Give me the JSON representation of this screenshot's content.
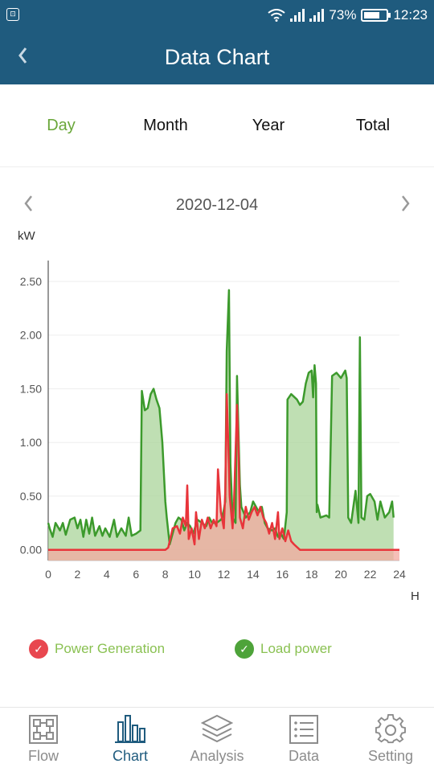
{
  "status_bar": {
    "battery": "73%",
    "time": "12:23",
    "battery_level": 0.73
  },
  "header": {
    "title": "Data Chart"
  },
  "tabs": [
    {
      "label": "Day",
      "active": true
    },
    {
      "label": "Month",
      "active": false
    },
    {
      "label": "Year",
      "active": false
    },
    {
      "label": "Total",
      "active": false
    }
  ],
  "date": "2020-12-04",
  "chart_data": {
    "type": "area",
    "ylabel": "kW",
    "xlabel": "H",
    "xlim": [
      0,
      24
    ],
    "ylim": [
      -0.1,
      2.65
    ],
    "x_ticks": [
      "0",
      "2",
      "4",
      "6",
      "8",
      "10",
      "12",
      "14",
      "16",
      "18",
      "20",
      "22",
      "24"
    ],
    "y_ticks": [
      "0.00",
      "0.50",
      "1.00",
      "1.50",
      "2.00",
      "2.50"
    ],
    "grid": true,
    "series": [
      {
        "name": "Load power",
        "color": "#3c9a2c",
        "fill": "#a9d49a",
        "points": [
          [
            0,
            0.25
          ],
          [
            0.1,
            0.2
          ],
          [
            0.3,
            0.12
          ],
          [
            0.5,
            0.25
          ],
          [
            0.8,
            0.18
          ],
          [
            1.0,
            0.25
          ],
          [
            1.2,
            0.14
          ],
          [
            1.5,
            0.28
          ],
          [
            1.8,
            0.3
          ],
          [
            2.0,
            0.2
          ],
          [
            2.2,
            0.28
          ],
          [
            2.4,
            0.12
          ],
          [
            2.6,
            0.28
          ],
          [
            2.8,
            0.15
          ],
          [
            3.0,
            0.3
          ],
          [
            3.2,
            0.13
          ],
          [
            3.5,
            0.22
          ],
          [
            3.7,
            0.13
          ],
          [
            3.9,
            0.2
          ],
          [
            4.2,
            0.12
          ],
          [
            4.5,
            0.28
          ],
          [
            4.7,
            0.12
          ],
          [
            5.0,
            0.2
          ],
          [
            5.3,
            0.13
          ],
          [
            5.5,
            0.3
          ],
          [
            5.7,
            0.13
          ],
          [
            6.0,
            0.15
          ],
          [
            6.3,
            0.18
          ],
          [
            6.4,
            1.48
          ],
          [
            6.6,
            1.3
          ],
          [
            6.8,
            1.32
          ],
          [
            7.0,
            1.45
          ],
          [
            7.2,
            1.5
          ],
          [
            7.4,
            1.4
          ],
          [
            7.6,
            1.32
          ],
          [
            7.8,
            1.0
          ],
          [
            8.0,
            0.45
          ],
          [
            8.1,
            0.3
          ],
          [
            8.3,
            0.05
          ],
          [
            8.5,
            0.15
          ],
          [
            8.7,
            0.25
          ],
          [
            8.9,
            0.3
          ],
          [
            9.1,
            0.28
          ],
          [
            9.3,
            0.18
          ],
          [
            9.5,
            0.25
          ],
          [
            9.7,
            0.22
          ],
          [
            9.9,
            0.15
          ],
          [
            10.2,
            0.28
          ],
          [
            10.5,
            0.25
          ],
          [
            10.8,
            0.22
          ],
          [
            11.0,
            0.3
          ],
          [
            11.2,
            0.25
          ],
          [
            11.5,
            0.25
          ],
          [
            11.8,
            0.28
          ],
          [
            11.9,
            0.3
          ],
          [
            12.1,
            0.45
          ],
          [
            12.2,
            1.85
          ],
          [
            12.35,
            2.42
          ],
          [
            12.45,
            0.8
          ],
          [
            12.6,
            0.3
          ],
          [
            12.8,
            0.25
          ],
          [
            12.9,
            1.62
          ],
          [
            13.0,
            1.1
          ],
          [
            13.1,
            0.6
          ],
          [
            13.2,
            0.4
          ],
          [
            13.5,
            0.3
          ],
          [
            13.8,
            0.35
          ],
          [
            14.0,
            0.45
          ],
          [
            14.2,
            0.4
          ],
          [
            14.4,
            0.35
          ],
          [
            14.6,
            0.4
          ],
          [
            14.8,
            0.25
          ],
          [
            15.0,
            0.2
          ],
          [
            15.3,
            0.18
          ],
          [
            15.5,
            0.2
          ],
          [
            15.7,
            0.12
          ],
          [
            15.9,
            0.15
          ],
          [
            16.1,
            0.1
          ],
          [
            16.3,
            0.35
          ],
          [
            16.35,
            1.4
          ],
          [
            16.6,
            1.45
          ],
          [
            17.0,
            1.4
          ],
          [
            17.2,
            1.35
          ],
          [
            17.4,
            1.38
          ],
          [
            17.6,
            1.55
          ],
          [
            17.8,
            1.65
          ],
          [
            18.0,
            1.67
          ],
          [
            18.1,
            1.42
          ],
          [
            18.2,
            1.72
          ],
          [
            18.3,
            1.55
          ],
          [
            18.35,
            0.35
          ],
          [
            18.4,
            0.42
          ],
          [
            18.6,
            0.3
          ],
          [
            19.0,
            0.32
          ],
          [
            19.2,
            0.3
          ],
          [
            19.4,
            1.62
          ],
          [
            19.7,
            1.65
          ],
          [
            20.0,
            1.6
          ],
          [
            20.3,
            1.67
          ],
          [
            20.4,
            1.6
          ],
          [
            20.5,
            0.3
          ],
          [
            20.7,
            0.25
          ],
          [
            21.0,
            0.55
          ],
          [
            21.2,
            0.25
          ],
          [
            21.3,
            1.98
          ],
          [
            21.4,
            0.3
          ],
          [
            21.6,
            0.28
          ],
          [
            21.8,
            0.5
          ],
          [
            22.0,
            0.52
          ],
          [
            22.3,
            0.45
          ],
          [
            22.5,
            0.28
          ],
          [
            22.7,
            0.45
          ],
          [
            23.0,
            0.3
          ],
          [
            23.3,
            0.35
          ],
          [
            23.5,
            0.45
          ],
          [
            23.6,
            0.3
          ]
        ]
      },
      {
        "name": "Power Generation",
        "color": "#e8343a",
        "fill": "#f3a9a0",
        "points": [
          [
            0,
            0.0
          ],
          [
            8.0,
            0.0
          ],
          [
            8.2,
            0.02
          ],
          [
            8.5,
            0.2
          ],
          [
            8.8,
            0.22
          ],
          [
            9.0,
            0.15
          ],
          [
            9.2,
            0.3
          ],
          [
            9.4,
            0.22
          ],
          [
            9.5,
            0.6
          ],
          [
            9.6,
            0.1
          ],
          [
            9.8,
            0.2
          ],
          [
            10.0,
            0.05
          ],
          [
            10.1,
            0.35
          ],
          [
            10.3,
            0.1
          ],
          [
            10.5,
            0.28
          ],
          [
            10.7,
            0.2
          ],
          [
            10.9,
            0.3
          ],
          [
            11.1,
            0.2
          ],
          [
            11.3,
            0.28
          ],
          [
            11.5,
            0.22
          ],
          [
            11.6,
            0.75
          ],
          [
            11.8,
            0.35
          ],
          [
            12.0,
            0.2
          ],
          [
            12.1,
            0.55
          ],
          [
            12.2,
            1.45
          ],
          [
            12.3,
            1.0
          ],
          [
            12.4,
            0.5
          ],
          [
            12.6,
            0.2
          ],
          [
            12.7,
            0.45
          ],
          [
            12.9,
            1.35
          ],
          [
            13.0,
            0.95
          ],
          [
            13.1,
            0.3
          ],
          [
            13.3,
            0.2
          ],
          [
            13.5,
            0.4
          ],
          [
            13.7,
            0.28
          ],
          [
            13.9,
            0.35
          ],
          [
            14.1,
            0.4
          ],
          [
            14.3,
            0.32
          ],
          [
            14.5,
            0.4
          ],
          [
            14.7,
            0.3
          ],
          [
            14.9,
            0.25
          ],
          [
            15.1,
            0.15
          ],
          [
            15.3,
            0.25
          ],
          [
            15.5,
            0.1
          ],
          [
            15.7,
            0.35
          ],
          [
            15.8,
            0.1
          ],
          [
            16.0,
            0.2
          ],
          [
            16.2,
            0.08
          ],
          [
            16.4,
            0.18
          ],
          [
            16.6,
            0.08
          ],
          [
            16.8,
            0.05
          ],
          [
            17.2,
            0.0
          ],
          [
            24.0,
            0.0
          ]
        ]
      }
    ]
  },
  "legend": [
    {
      "label": "Power Generation",
      "color": "#e8474f"
    },
    {
      "label": "Load power",
      "color": "#4ea33a"
    }
  ],
  "bottom_nav": [
    {
      "label": "Flow",
      "icon": "flow-icon",
      "active": false
    },
    {
      "label": "Chart",
      "icon": "bar-chart-icon",
      "active": true
    },
    {
      "label": "Analysis",
      "icon": "layers-icon",
      "active": false
    },
    {
      "label": "Data",
      "icon": "list-icon",
      "active": false
    },
    {
      "label": "Setting",
      "icon": "gear-icon",
      "active": false
    }
  ]
}
